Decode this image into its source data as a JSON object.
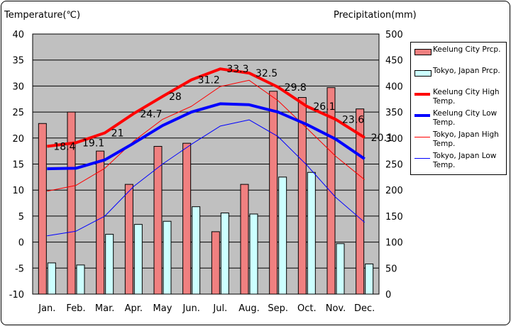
{
  "left_axis_title": "Temperature(℃)",
  "right_axis_title": "Precipitation(mm)",
  "legend": [
    {
      "label": "Keelung City Prcp.",
      "kind": "bar",
      "color": "#f08080"
    },
    {
      "label": "Tokyo, Japan Prcp.",
      "kind": "bar",
      "color": "#ccffff"
    },
    {
      "label": "Keelung City High Temp.",
      "kind": "thick-line",
      "color": "#ff0000"
    },
    {
      "label": "Keelung City Low Temp.",
      "kind": "thick-line",
      "color": "#0000ff"
    },
    {
      "label": "Tokyo, Japan High Temp.",
      "kind": "thin-line",
      "color": "#ff0000"
    },
    {
      "label": "Tokyo, Japan Low Temp.",
      "kind": "thin-line",
      "color": "#0000ff"
    }
  ],
  "chart_data": {
    "type": "bar+line",
    "categories": [
      "Jan.",
      "Feb.",
      "Mar.",
      "Apr.",
      "May",
      "Jun.",
      "Jul.",
      "Aug.",
      "Sep.",
      "Oct.",
      "Nov.",
      "Dec."
    ],
    "y_left": {
      "label": "Temperature(℃)",
      "lim": [
        -10,
        40
      ],
      "ticks": [
        -10,
        -5,
        0,
        5,
        10,
        15,
        20,
        25,
        30,
        35,
        40
      ]
    },
    "y_right": {
      "label": "Precipitation(mm)",
      "lim": [
        0,
        500
      ],
      "ticks": [
        0,
        50,
        100,
        150,
        200,
        250,
        300,
        350,
        400,
        450,
        500
      ]
    },
    "bars": [
      {
        "name": "Keelung City Prcp.",
        "axis": "right",
        "color": "#f08080",
        "values": [
          328,
          350,
          275,
          211,
          284,
          290,
          120,
          211,
          390,
          378,
          397,
          356
        ]
      },
      {
        "name": "Tokyo, Japan Prcp.",
        "axis": "right",
        "color": "#ccffff",
        "values": [
          60,
          56,
          115,
          134,
          140,
          168,
          156,
          154,
          225,
          234,
          97,
          58
        ]
      }
    ],
    "lines": [
      {
        "name": "Keelung City High Temp.",
        "axis": "left",
        "color": "#ff0000",
        "width": "thick",
        "values": [
          18.4,
          19.1,
          21,
          24.7,
          28,
          31.2,
          33.3,
          32.5,
          29.8,
          26.1,
          23.6,
          20.1
        ],
        "labels": [
          "18.4",
          "19.1",
          "21",
          "24.7",
          "28",
          "31.2",
          "33.3",
          "32.5",
          "29.8",
          "26.1",
          "23.6",
          "20.1"
        ]
      },
      {
        "name": "Keelung City Low Temp.",
        "axis": "left",
        "color": "#0000ff",
        "width": "thick",
        "values": [
          14.1,
          14.2,
          15.8,
          19.0,
          22.4,
          25.0,
          26.6,
          26.4,
          25.0,
          22.6,
          19.8,
          16.0
        ]
      },
      {
        "name": "Tokyo, Japan High Temp.",
        "axis": "left",
        "color": "#ff0000",
        "width": "thin",
        "values": [
          9.8,
          10.9,
          14.2,
          19.4,
          23.6,
          26.1,
          29.9,
          31.1,
          27.2,
          21.9,
          16.5,
          12.0
        ]
      },
      {
        "name": "Tokyo, Japan Low Temp.",
        "axis": "left",
        "color": "#0000ff",
        "width": "thin",
        "values": [
          1.2,
          2.1,
          5.0,
          10.7,
          15.0,
          18.8,
          22.3,
          23.5,
          20.3,
          14.8,
          8.6,
          3.8
        ]
      }
    ],
    "grid": "horizontal",
    "legend_position": "right"
  }
}
